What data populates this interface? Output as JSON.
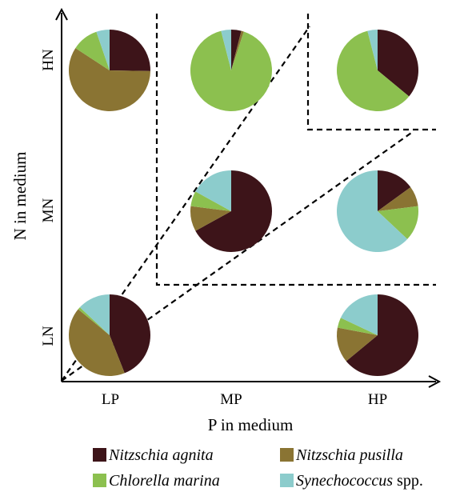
{
  "colors": {
    "Nitzschia agnita": "#3d1419",
    "Nitzschia pusilla": "#8a7433",
    "Chlorella marina": "#8cc04f",
    "Synechococcus spp.": "#8ccccc"
  },
  "chart_data": {
    "type": "pie",
    "title": "",
    "xlabel": "P in medium",
    "ylabel": "N in medium",
    "x_categories": [
      "LP",
      "MP",
      "HP"
    ],
    "y_categories": [
      "LN",
      "MN",
      "HN"
    ],
    "grid": false,
    "legend_position": "bottom",
    "series_order": [
      "Nitzschia agnita",
      "Nitzschia pusilla",
      "Chlorella marina",
      "Synechococcus spp."
    ],
    "legend": [
      {
        "species": "Nitzschia agnita",
        "name": "Nitzschia agnita",
        "suffix": ""
      },
      {
        "species": "Nitzschia pusilla",
        "name": "Nitzschia pusilla",
        "suffix": ""
      },
      {
        "species": "Chlorella marina",
        "name": "Chlorella marina",
        "suffix": ""
      },
      {
        "species": "Synechococcus spp.",
        "name": "Synechococcus",
        "suffix": " spp."
      }
    ],
    "pies": [
      {
        "x": "LP",
        "y": "HN",
        "values": {
          "Nitzschia agnita": 24,
          "Nitzschia pusilla": 56,
          "Chlorella marina": 10,
          "Synechococcus spp.": 5
        }
      },
      {
        "x": "MP",
        "y": "HN",
        "values": {
          "Nitzschia agnita": 4,
          "Nitzschia pusilla": 1,
          "Chlorella marina": 91,
          "Synechococcus spp.": 4
        }
      },
      {
        "x": "HP",
        "y": "HN",
        "values": {
          "Nitzschia agnita": 36,
          "Nitzschia pusilla": 0,
          "Chlorella marina": 60,
          "Synechococcus spp.": 4
        }
      },
      {
        "x": "MP",
        "y": "MN",
        "values": {
          "Nitzschia agnita": 67,
          "Nitzschia pusilla": 10,
          "Chlorella marina": 6,
          "Synechococcus spp.": 17
        }
      },
      {
        "x": "HP",
        "y": "MN",
        "values": {
          "Nitzschia agnita": 15,
          "Nitzschia pusilla": 8,
          "Chlorella marina": 14,
          "Synechococcus spp.": 63
        }
      },
      {
        "x": "LP",
        "y": "LN",
        "values": {
          "Nitzschia agnita": 44,
          "Nitzschia pusilla": 42,
          "Chlorella marina": 1,
          "Synechococcus spp.": 13
        }
      },
      {
        "x": "HP",
        "y": "LN",
        "values": {
          "Nitzschia agnita": 64,
          "Nitzschia pusilla": 14,
          "Chlorella marina": 4,
          "Synechococcus spp.": 18
        }
      }
    ]
  }
}
